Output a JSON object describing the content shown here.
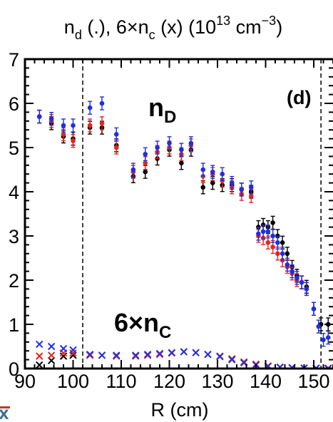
{
  "chart_data": {
    "type": "scatter",
    "title": "n_d (.), 6×n_c (x) (10^13 cm^-3)",
    "title_parts": {
      "t1": "n",
      "t1_sub": "d",
      "t2": " (.), 6×n",
      "t2_sub": "c",
      "t3": " (x) (10",
      "t3_sup": "13",
      "t4": " cm",
      "t4_sup": "−3",
      "t5": ")"
    },
    "xlabel": "R (cm)",
    "ylabel": "",
    "xlim": [
      90,
      154
    ],
    "ylim": [
      0,
      7
    ],
    "x_ticks": [
      90,
      100,
      110,
      120,
      130,
      140,
      150
    ],
    "y_ticks": [
      0,
      1,
      2,
      3,
      4,
      5,
      6,
      7
    ],
    "panel_label": "(d)",
    "vertical_dashed_lines": [
      102,
      151.5
    ],
    "annotations": {
      "nd_main": "n",
      "nd_sub": "D",
      "nc_main": "6×n",
      "nc_sub": "C"
    },
    "colors": {
      "black": "#000000",
      "red": "#e8231f",
      "blue": "#1f2fe0"
    },
    "series": [
      {
        "color": "black",
        "marker": "dot",
        "points": [
          [
            93,
            5.7
          ],
          [
            95.5,
            5.55
          ],
          [
            98,
            5.25
          ],
          [
            100,
            5.2
          ],
          [
            103.5,
            5.45
          ],
          [
            106,
            5.45
          ],
          [
            109,
            5.05
          ],
          [
            112.5,
            4.35
          ],
          [
            115,
            4.45
          ],
          [
            117.5,
            4.75
          ],
          [
            120,
            4.95
          ],
          [
            122.5,
            4.65
          ],
          [
            124.5,
            4.95
          ],
          [
            127,
            4.1
          ],
          [
            129,
            4.2
          ],
          [
            131,
            4.15
          ],
          [
            133,
            4.15
          ],
          [
            135,
            4.05
          ],
          [
            137,
            4.0
          ],
          [
            138.5,
            3.2
          ],
          [
            139.5,
            3.25
          ],
          [
            140.5,
            3.2
          ],
          [
            141.5,
            3.3
          ],
          [
            142.5,
            3.0
          ],
          [
            143.5,
            2.85
          ],
          [
            144.5,
            2.6
          ],
          [
            145.5,
            2.3
          ],
          [
            146.5,
            2.1
          ],
          [
            147.5,
            1.95
          ],
          [
            148.5,
            1.85
          ],
          [
            150,
            1.35
          ],
          [
            151.5,
            1.0
          ],
          [
            153,
            1.0
          ]
        ]
      },
      {
        "color": "red",
        "marker": "dot",
        "points": [
          [
            93,
            5.7
          ],
          [
            95.5,
            5.6
          ],
          [
            98,
            5.3
          ],
          [
            100,
            5.15
          ],
          [
            103.5,
            5.5
          ],
          [
            106,
            5.55
          ],
          [
            109,
            5.0
          ],
          [
            112.5,
            4.45
          ],
          [
            115,
            4.65
          ],
          [
            117.5,
            4.9
          ],
          [
            120,
            5.0
          ],
          [
            122.5,
            4.85
          ],
          [
            124.5,
            5.05
          ],
          [
            127,
            4.35
          ],
          [
            129,
            4.4
          ],
          [
            131,
            4.25
          ],
          [
            133,
            4.1
          ],
          [
            135,
            3.95
          ],
          [
            137,
            3.9
          ],
          [
            138.5,
            3.0
          ],
          [
            139.5,
            2.95
          ],
          [
            140.5,
            2.85
          ],
          [
            141.5,
            2.75
          ],
          [
            142.5,
            2.6
          ],
          [
            143.5,
            2.45
          ],
          [
            144.5,
            2.3
          ],
          [
            145.5,
            2.15
          ],
          [
            146.5,
            2.0
          ],
          [
            147.5,
            1.95
          ],
          [
            148.5,
            1.8
          ]
        ]
      },
      {
        "color": "blue",
        "marker": "dot",
        "points": [
          [
            93,
            5.7
          ],
          [
            95.5,
            5.65
          ],
          [
            98,
            5.5
          ],
          [
            100,
            5.5
          ],
          [
            103.5,
            5.9
          ],
          [
            106,
            6.0
          ],
          [
            109,
            5.3
          ],
          [
            112.5,
            4.5
          ],
          [
            115,
            4.85
          ],
          [
            117.5,
            5.0
          ],
          [
            120,
            5.1
          ],
          [
            122.5,
            4.95
          ],
          [
            124.5,
            5.1
          ],
          [
            127,
            4.5
          ],
          [
            129,
            4.45
          ],
          [
            131,
            4.4
          ],
          [
            133,
            4.2
          ],
          [
            135,
            4.05
          ],
          [
            137,
            4.1
          ],
          [
            138.5,
            3.05
          ],
          [
            139.5,
            3.1
          ],
          [
            140.5,
            3.1
          ],
          [
            141.5,
            3.0
          ],
          [
            142.5,
            2.85
          ],
          [
            143.5,
            2.6
          ],
          [
            144.5,
            2.35
          ],
          [
            145.5,
            2.2
          ],
          [
            146.5,
            2.05
          ],
          [
            147.5,
            1.95
          ],
          [
            148.5,
            1.8
          ],
          [
            150,
            1.35
          ],
          [
            151,
            0.95
          ],
          [
            152,
            0.65
          ],
          [
            153,
            0.7
          ]
        ]
      },
      {
        "color": "black",
        "marker": "x",
        "points": [
          [
            93,
            0.08
          ],
          [
            95.5,
            0.18
          ],
          [
            98,
            0.28
          ],
          [
            100,
            0.3
          ]
        ]
      },
      {
        "color": "red",
        "marker": "x",
        "points": [
          [
            93,
            0.28
          ],
          [
            95.5,
            0.3
          ],
          [
            98,
            0.35
          ],
          [
            100,
            0.35
          ],
          [
            103.5,
            0.3
          ],
          [
            106,
            0.3
          ],
          [
            109,
            0.28
          ],
          [
            113,
            0.28
          ],
          [
            115.5,
            0.3
          ],
          [
            118,
            0.32
          ],
          [
            120.5,
            0.35
          ],
          [
            123,
            0.38
          ],
          [
            125.5,
            0.36
          ],
          [
            128,
            0.32
          ],
          [
            130.5,
            0.28
          ],
          [
            133,
            0.22
          ],
          [
            135.5,
            0.15
          ],
          [
            138,
            0.1
          ],
          [
            140.5,
            0.06
          ],
          [
            143,
            0.03
          ],
          [
            145.5,
            0.02
          ],
          [
            148,
            0.01
          ],
          [
            150.5,
            0.01
          ],
          [
            153,
            0.01
          ]
        ]
      },
      {
        "color": "blue",
        "marker": "x",
        "points": [
          [
            93,
            0.55
          ],
          [
            95.5,
            0.5
          ],
          [
            98,
            0.45
          ],
          [
            100,
            0.42
          ],
          [
            103.5,
            0.32
          ],
          [
            106,
            0.3
          ],
          [
            109,
            0.3
          ],
          [
            113,
            0.3
          ],
          [
            115.5,
            0.32
          ],
          [
            118,
            0.34
          ],
          [
            120.5,
            0.36
          ],
          [
            123,
            0.38
          ],
          [
            125.5,
            0.36
          ],
          [
            128,
            0.32
          ],
          [
            130.5,
            0.27
          ],
          [
            133,
            0.2
          ],
          [
            135.5,
            0.13
          ],
          [
            138,
            0.08
          ],
          [
            140.5,
            0.05
          ],
          [
            143,
            0.03
          ],
          [
            145.5,
            0.02
          ],
          [
            148,
            0.01
          ],
          [
            150.5,
            0.01
          ],
          [
            153,
            0.0
          ]
        ]
      }
    ]
  }
}
